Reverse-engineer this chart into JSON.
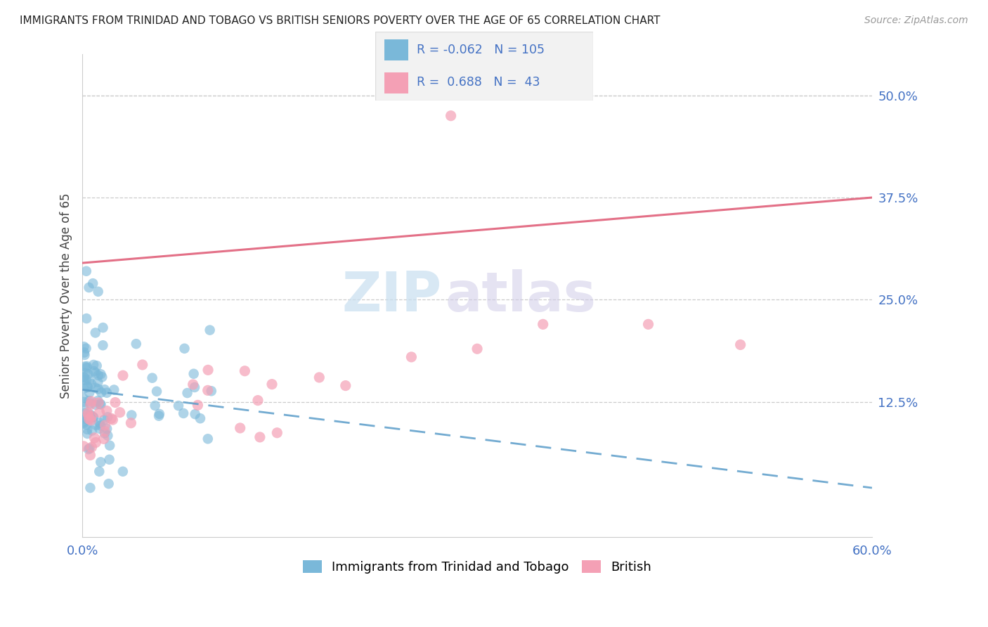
{
  "title": "IMMIGRANTS FROM TRINIDAD AND TOBAGO VS BRITISH SENIORS POVERTY OVER THE AGE OF 65 CORRELATION CHART",
  "source": "Source: ZipAtlas.com",
  "ylabel": "Seniors Poverty Over the Age of 65",
  "xlim": [
    0.0,
    0.6
  ],
  "ylim": [
    -0.04,
    0.55
  ],
  "yticks_right": [
    0.125,
    0.25,
    0.375,
    0.5
  ],
  "ytick_labels_right": [
    "12.5%",
    "25.0%",
    "37.5%",
    "50.0%"
  ],
  "blue_color": "#7ab8d9",
  "pink_color": "#f4a0b5",
  "blue_R": -0.062,
  "blue_N": 105,
  "pink_R": 0.688,
  "pink_N": 43,
  "legend_label_blue": "Immigrants from Trinidad and Tobago",
  "legend_label_pink": "British",
  "blue_line_x0": 0.0,
  "blue_line_y0": 0.14,
  "blue_line_x1": 0.6,
  "blue_line_y1": 0.02,
  "pink_line_x0": 0.0,
  "pink_line_y0": 0.295,
  "pink_line_x1": 0.6,
  "pink_line_y1": 0.375,
  "watermark_zip": "ZIP",
  "watermark_atlas": "atlas"
}
